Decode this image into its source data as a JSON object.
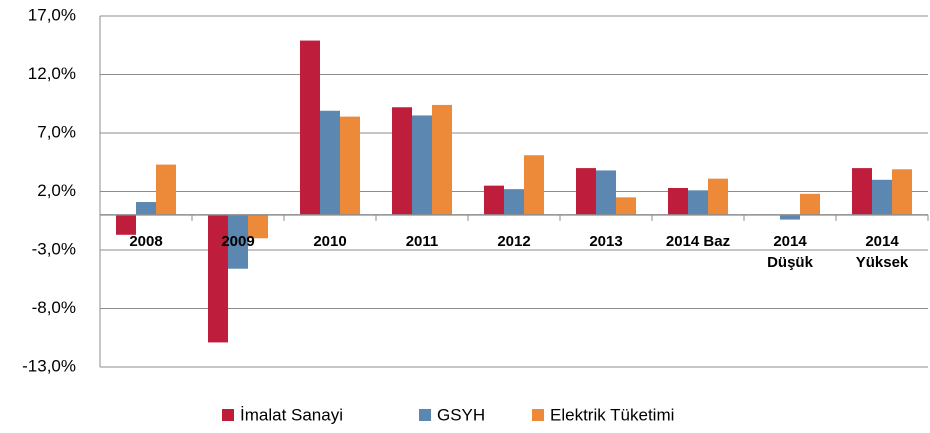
{
  "chart_data": {
    "type": "bar",
    "categories": [
      "2008",
      "2009",
      "2010",
      "2011",
      "2012",
      "2013",
      "2014 Baz",
      [
        "2014",
        "Düşük"
      ],
      [
        "2014",
        "Yüksek"
      ]
    ],
    "series": [
      {
        "name": "İmalat Sanayi",
        "color": "#be1e3c",
        "values": [
          -1.7,
          -10.9,
          14.9,
          9.2,
          2.5,
          4.0,
          2.3,
          0,
          4.0
        ]
      },
      {
        "name": "GSYH",
        "color": "#5b87b0",
        "values": [
          1.1,
          -4.6,
          8.9,
          8.5,
          2.2,
          3.8,
          2.1,
          -0.4,
          3.0
        ]
      },
      {
        "name": "Elektrik Tüketimi",
        "color": "#ed8a3a",
        "values": [
          4.3,
          -2.0,
          8.4,
          9.4,
          5.1,
          1.5,
          3.1,
          1.8,
          3.9
        ]
      }
    ],
    "ylim": [
      -13,
      17
    ],
    "yticks": [
      {
        "value": -13,
        "label": "-13,0%"
      },
      {
        "value": -8,
        "label": "-8,0%"
      },
      {
        "value": -3,
        "label": "-3,0%"
      },
      {
        "value": 2,
        "label": "2,0%"
      },
      {
        "value": 7,
        "label": "7,0%"
      },
      {
        "value": 12,
        "label": "12,0%"
      },
      {
        "value": 17,
        "label": "17,0%"
      }
    ],
    "grid": true,
    "legend": "bottom"
  }
}
